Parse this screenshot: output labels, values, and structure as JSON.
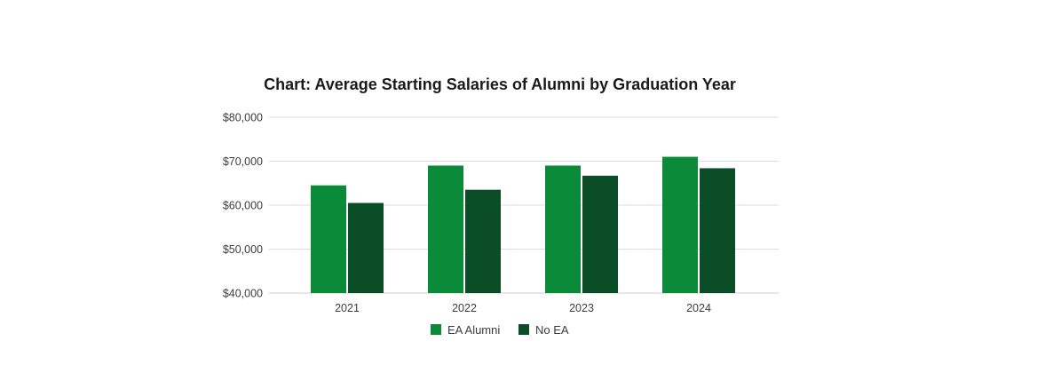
{
  "chart_data": {
    "type": "bar",
    "title": "Chart: Average Starting Salaries of Alumni by Graduation Year",
    "xlabel": "",
    "ylabel": "",
    "categories": [
      "2021",
      "2022",
      "2023",
      "2024"
    ],
    "series": [
      {
        "name": "EA Alumni",
        "color": "#0b8a3a",
        "values": [
          64500,
          69000,
          69000,
          71000
        ]
      },
      {
        "name": "No EA",
        "color": "#0b4d26",
        "values": [
          60500,
          63500,
          66700,
          68400
        ]
      }
    ],
    "ylim": [
      40000,
      80000
    ],
    "y_ticks": [
      {
        "value": 80000,
        "label": "$80,000"
      },
      {
        "value": 70000,
        "label": "$70,000"
      },
      {
        "value": 60000,
        "label": "$60,000"
      },
      {
        "value": 50000,
        "label": "$50,000"
      },
      {
        "value": 40000,
        "label": "$40,000"
      }
    ],
    "grid": true,
    "legend_position": "bottom"
  }
}
